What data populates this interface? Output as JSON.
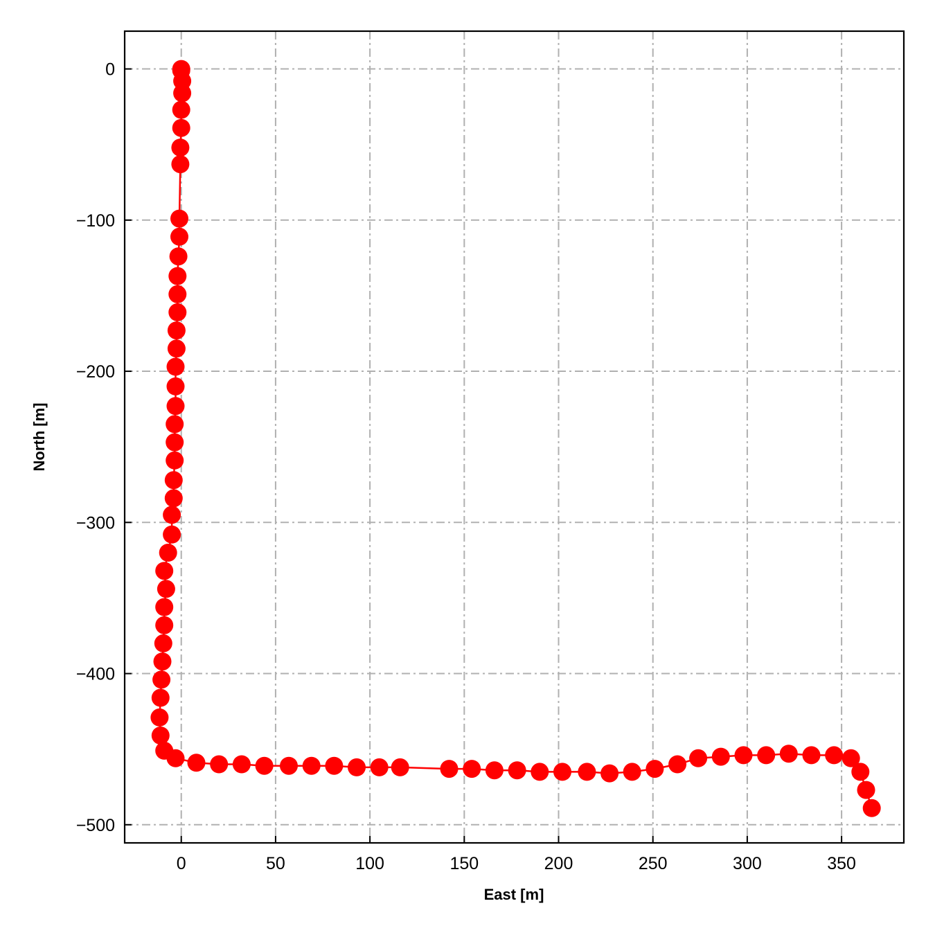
{
  "chart_data": {
    "type": "line",
    "title": "",
    "xlabel": "East [m]",
    "ylabel": "North [m]",
    "xlim": [
      -30,
      383
    ],
    "ylim": [
      -512,
      25
    ],
    "grid": true,
    "grid_style": "dashdot",
    "xticks": [
      0,
      50,
      100,
      150,
      200,
      250,
      300,
      350
    ],
    "yticks": [
      0,
      -100,
      -200,
      -300,
      -400,
      -500
    ],
    "xtick_labels": [
      "0",
      "50",
      "100",
      "150",
      "200",
      "250",
      "300",
      "350"
    ],
    "ytick_labels": [
      "0",
      "−100",
      "−200",
      "−300",
      "−400",
      "−500"
    ],
    "series": [
      {
        "color": "#ff0000",
        "marker": "circle",
        "x": [
          0,
          0,
          0.5,
          0.5,
          0,
          0,
          -0.5,
          -0.5,
          -1,
          -1,
          -1.5,
          -2,
          -2,
          -2,
          -2.5,
          -2.5,
          -3,
          -3,
          -3,
          -3.5,
          -3.5,
          -3.5,
          -4,
          -4,
          -5,
          -5,
          -7,
          -9,
          -8,
          -9,
          -9,
          -9.5,
          -10,
          -10.5,
          -11,
          -11.5,
          -11,
          -9,
          -3,
          8,
          20,
          32,
          44,
          57,
          69,
          81,
          93,
          105,
          116,
          142,
          154,
          166,
          178,
          190,
          202,
          215,
          227,
          239,
          251,
          263,
          274,
          286,
          298,
          310,
          322,
          334,
          346,
          355,
          360,
          363,
          366
        ],
        "y": [
          0,
          -1,
          -8,
          -16,
          -27,
          -39,
          -52,
          -63,
          -99,
          -111,
          -124,
          -137,
          -149,
          -161,
          -173,
          -185,
          -197,
          -210,
          -223,
          -235,
          -247,
          -259,
          -272,
          -284,
          -295,
          -308,
          -320,
          -332,
          -344,
          -356,
          -368,
          -380,
          -392,
          -404,
          -416,
          -429,
          -441,
          -451,
          -456,
          -459,
          -460,
          -460,
          -461,
          -461,
          -461,
          -461,
          -462,
          -462,
          -462,
          -463,
          -463,
          -464,
          -464,
          -465,
          -465,
          -465,
          -466,
          -465,
          -463,
          -460,
          -456,
          -455,
          -454,
          -454,
          -453,
          -454,
          -454,
          -456,
          -465,
          -477,
          -489
        ]
      }
    ]
  }
}
